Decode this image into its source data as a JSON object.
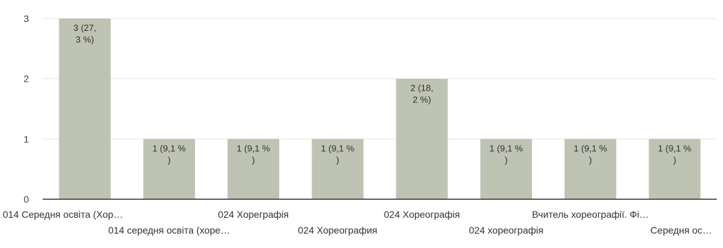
{
  "chart_data": {
    "type": "bar",
    "categories": [
      "014 Середня освіта (Хор…",
      "014 середня освіта (хоре…",
      "024 Хореграфія",
      "024 Хореография",
      "024 Хореографія",
      "024 хореографія",
      "Вчитель хореографії. Фі…",
      "Середня ос…"
    ],
    "values": [
      3,
      1,
      1,
      1,
      2,
      1,
      1,
      1
    ],
    "data_labels": [
      [
        "3 (27,",
        "3 %)"
      ],
      [
        "1 (9,1 %",
        ")"
      ],
      [
        "1 (9,1 %",
        ")"
      ],
      [
        "1 (9,1 %",
        ")"
      ],
      [
        "2 (18,",
        "2 %)"
      ],
      [
        "1 (9,1 %",
        ")"
      ],
      [
        "1 (9,1 %",
        ")"
      ],
      [
        "1 (9,1 %",
        ")"
      ]
    ],
    "yticks": [
      "0",
      "1",
      "2",
      "3"
    ],
    "ylim": [
      0,
      3
    ],
    "grid": true,
    "bar_color": "#bfc3b3",
    "grid_color": "#e6e6e6",
    "axis_color": "#333333"
  }
}
